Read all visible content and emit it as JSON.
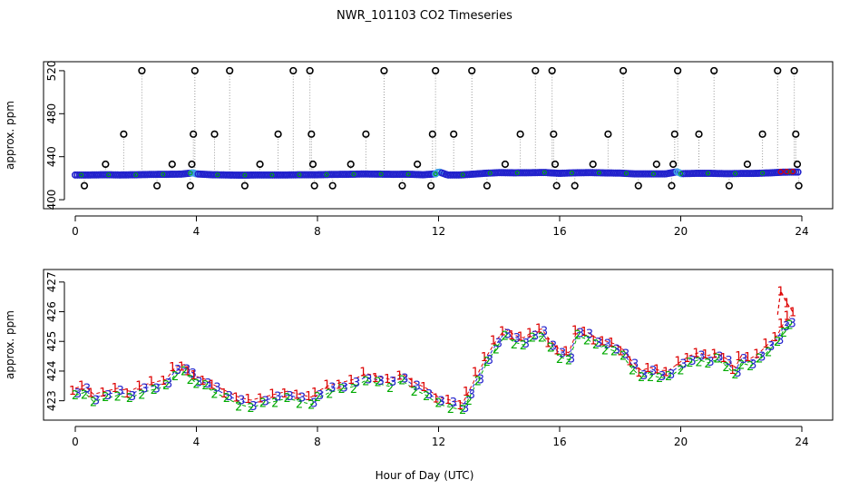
{
  "title": "NWR_101103  CO2 Timeseries",
  "chart_data": [
    {
      "type": "scatter",
      "ylabel": "approx. ppm",
      "xlim": [
        0,
        24
      ],
      "ylim": [
        395,
        525
      ],
      "xticks": [
        0,
        4,
        8,
        12,
        16,
        20,
        24
      ],
      "yticks": [
        400,
        440,
        480,
        520
      ],
      "colors": {
        "main": "#2222cc",
        "accent": "#3fa2e8",
        "spike": "#000000",
        "alt1": "#dd0000",
        "alt2": "#00aa00",
        "connector": "#999999"
      },
      "baseline": [
        [
          0,
          423
        ],
        [
          0.5,
          423
        ],
        [
          1,
          423.2
        ],
        [
          1.5,
          423
        ],
        [
          2,
          423.2
        ],
        [
          2.5,
          423.5
        ],
        [
          3,
          423.6
        ],
        [
          3.5,
          423.8
        ],
        [
          3.9,
          425
        ],
        [
          4,
          424
        ],
        [
          4.5,
          423.2
        ],
        [
          5,
          423
        ],
        [
          5.5,
          422.8
        ],
        [
          6,
          423
        ],
        [
          6.5,
          423
        ],
        [
          7,
          423
        ],
        [
          7.5,
          423.2
        ],
        [
          8,
          423.2
        ],
        [
          8.5,
          423.5
        ],
        [
          9,
          423.6
        ],
        [
          9.5,
          423.9
        ],
        [
          10,
          423.8
        ],
        [
          10.5,
          423.6
        ],
        [
          11,
          423.7
        ],
        [
          11.5,
          423.2
        ],
        [
          11.9,
          424
        ],
        [
          12,
          426
        ],
        [
          12.3,
          423
        ],
        [
          12.7,
          423
        ],
        [
          13,
          423.5
        ],
        [
          13.5,
          424.5
        ],
        [
          14,
          425.2
        ],
        [
          14.5,
          425
        ],
        [
          15,
          425.1
        ],
        [
          15.5,
          425.3
        ],
        [
          16,
          424.5
        ],
        [
          16.5,
          425
        ],
        [
          17,
          425.2
        ],
        [
          17.5,
          424.9
        ],
        [
          18,
          424.7
        ],
        [
          18.5,
          424
        ],
        [
          19,
          424
        ],
        [
          19.5,
          424
        ],
        [
          19.9,
          426
        ],
        [
          20,
          424.2
        ],
        [
          20.5,
          424.5
        ],
        [
          21,
          424.5
        ],
        [
          21.5,
          424.2
        ],
        [
          22,
          424.4
        ],
        [
          22.5,
          424.5
        ],
        [
          23,
          425
        ],
        [
          23.3,
          425.5
        ],
        [
          23.6,
          425.7
        ]
      ],
      "spikes": [
        [
          0.3,
          413
        ],
        [
          1.0,
          433
        ],
        [
          1.6,
          461
        ],
        [
          2.2,
          520
        ],
        [
          2.7,
          413
        ],
        [
          3.2,
          433
        ],
        [
          3.8,
          413
        ],
        [
          3.85,
          433
        ],
        [
          3.9,
          461
        ],
        [
          3.95,
          520
        ],
        [
          4.6,
          461
        ],
        [
          5.1,
          520
        ],
        [
          5.6,
          413
        ],
        [
          6.1,
          433
        ],
        [
          6.7,
          461
        ],
        [
          7.2,
          520
        ],
        [
          7.75,
          520
        ],
        [
          7.8,
          461
        ],
        [
          7.85,
          433
        ],
        [
          7.9,
          413
        ],
        [
          8.5,
          413
        ],
        [
          9.1,
          433
        ],
        [
          9.6,
          461
        ],
        [
          10.2,
          520
        ],
        [
          10.8,
          413
        ],
        [
          11.3,
          433
        ],
        [
          11.75,
          413
        ],
        [
          11.8,
          461
        ],
        [
          11.9,
          520
        ],
        [
          12.5,
          461
        ],
        [
          13.1,
          520
        ],
        [
          13.6,
          413
        ],
        [
          14.2,
          433
        ],
        [
          14.7,
          461
        ],
        [
          15.2,
          520
        ],
        [
          15.75,
          520
        ],
        [
          15.8,
          461
        ],
        [
          15.85,
          433
        ],
        [
          15.9,
          413
        ],
        [
          16.5,
          413
        ],
        [
          17.1,
          433
        ],
        [
          17.6,
          461
        ],
        [
          18.1,
          520
        ],
        [
          18.6,
          413
        ],
        [
          19.2,
          433
        ],
        [
          19.7,
          413
        ],
        [
          19.75,
          433
        ],
        [
          19.8,
          461
        ],
        [
          19.9,
          520
        ],
        [
          20.6,
          461
        ],
        [
          21.1,
          520
        ],
        [
          21.6,
          413
        ],
        [
          22.2,
          433
        ],
        [
          22.7,
          461
        ],
        [
          23.2,
          520
        ],
        [
          23.75,
          520
        ],
        [
          23.8,
          461
        ],
        [
          23.85,
          433
        ],
        [
          23.9,
          413
        ]
      ]
    },
    {
      "type": "line",
      "ylabel": "approx. ppm",
      "xlabel": "Hour of Day (UTC)",
      "xlim": [
        0,
        24
      ],
      "ylim": [
        422.5,
        427.3
      ],
      "xticks": [
        0,
        4,
        8,
        12,
        16,
        20,
        24
      ],
      "yticks": [
        423,
        424,
        425,
        426,
        427
      ],
      "series_labels": [
        "1",
        "2",
        "3"
      ],
      "series_colors": [
        "#dd0000",
        "#00aa00",
        "#2222cc"
      ],
      "points": [
        [
          0,
          423.3
        ],
        [
          0.3,
          423.4
        ],
        [
          0.6,
          423.1
        ],
        [
          1,
          423.2
        ],
        [
          1.4,
          423.3
        ],
        [
          1.8,
          423.2
        ],
        [
          2.2,
          423.4
        ],
        [
          2.6,
          423.5
        ],
        [
          3,
          423.6
        ],
        [
          3.3,
          424
        ],
        [
          3.6,
          424.1
        ],
        [
          3.8,
          423.9
        ],
        [
          4,
          423.7
        ],
        [
          4.3,
          423.6
        ],
        [
          4.6,
          423.4
        ],
        [
          5,
          423.2
        ],
        [
          5.4,
          423
        ],
        [
          5.8,
          422.9
        ],
        [
          6.2,
          423
        ],
        [
          6.6,
          423.1
        ],
        [
          7,
          423.2
        ],
        [
          7.4,
          423.1
        ],
        [
          7.8,
          423
        ],
        [
          8,
          423.2
        ],
        [
          8.4,
          423.4
        ],
        [
          8.8,
          423.5
        ],
        [
          9.2,
          423.6
        ],
        [
          9.6,
          423.8
        ],
        [
          10,
          423.7
        ],
        [
          10.4,
          423.6
        ],
        [
          10.8,
          423.8
        ],
        [
          11.2,
          423.5
        ],
        [
          11.6,
          423.3
        ],
        [
          12,
          423
        ],
        [
          12.4,
          422.9
        ],
        [
          12.8,
          422.8
        ],
        [
          13,
          423.2
        ],
        [
          13.3,
          423.8
        ],
        [
          13.6,
          424.4
        ],
        [
          13.9,
          424.9
        ],
        [
          14.2,
          425.3
        ],
        [
          14.5,
          425.1
        ],
        [
          14.8,
          425
        ],
        [
          15.1,
          425.2
        ],
        [
          15.4,
          425.3
        ],
        [
          15.7,
          424.9
        ],
        [
          16,
          424.6
        ],
        [
          16.3,
          424.5
        ],
        [
          16.6,
          425.3
        ],
        [
          16.9,
          425.2
        ],
        [
          17.2,
          425
        ],
        [
          17.5,
          424.9
        ],
        [
          17.8,
          424.8
        ],
        [
          18.1,
          424.6
        ],
        [
          18.4,
          424.2
        ],
        [
          18.7,
          423.9
        ],
        [
          19,
          424
        ],
        [
          19.3,
          423.9
        ],
        [
          19.6,
          423.9
        ],
        [
          20,
          424.2
        ],
        [
          20.3,
          424.4
        ],
        [
          20.6,
          424.5
        ],
        [
          20.9,
          424.4
        ],
        [
          21.2,
          424.5
        ],
        [
          21.5,
          424.3
        ],
        [
          21.8,
          424
        ],
        [
          22,
          424.4
        ],
        [
          22.3,
          424.3
        ],
        [
          22.6,
          424.5
        ],
        [
          22.9,
          424.8
        ],
        [
          23.2,
          425.1
        ],
        [
          23.4,
          425.5
        ],
        [
          23.6,
          425.7
        ]
      ],
      "red_peaks": [
        [
          23.3,
          426.7
        ],
        [
          23.5,
          426.3
        ],
        [
          23.7,
          426.0
        ]
      ]
    }
  ]
}
